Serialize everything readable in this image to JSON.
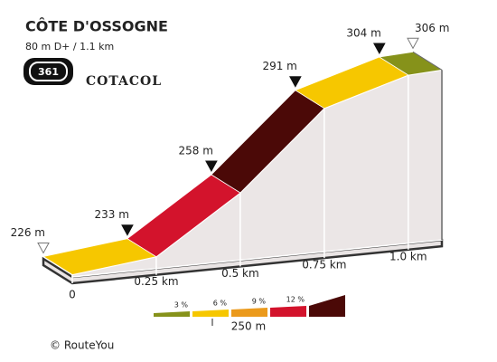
{
  "title": "CÔTE D'OSSOGNE",
  "subtitle": "80 m D+ / 1.1 km",
  "badge": "361",
  "brand": "COTACOL",
  "footer": "© RouteYou",
  "chart_data": {
    "type": "climb-profile",
    "x": [
      0,
      0.25,
      0.5,
      0.75,
      1.0,
      1.1
    ],
    "values": [
      226,
      233,
      258,
      291,
      304,
      306
    ],
    "value_labels": [
      "226 m",
      "233 m",
      "258 m",
      "291 m",
      "304 m",
      "306 m"
    ],
    "segment_colors": [
      "#f6c700",
      "#d3132c",
      "#4b0907",
      "#f6c700",
      "#86921a"
    ],
    "xlim": [
      0,
      1.1
    ],
    "ylim": [
      200,
      310
    ],
    "xticks": [
      0,
      {
        "value": 0.25,
        "label": "0.25 km"
      },
      {
        "value": 0.5,
        "label": "0.5 km"
      },
      {
        "value": 0.75,
        "label": "0.75 km"
      },
      {
        "value": 1.0,
        "label": "1.0 km"
      }
    ],
    "legend": {
      "labels": [
        "3 %",
        "6 %",
        "9 %",
        "12 %",
        null
      ],
      "colors": [
        "#86921a",
        "#f6c700",
        "#eb9a1c",
        "#d3132c",
        "#4b0907"
      ],
      "scale": "250 m"
    }
  }
}
